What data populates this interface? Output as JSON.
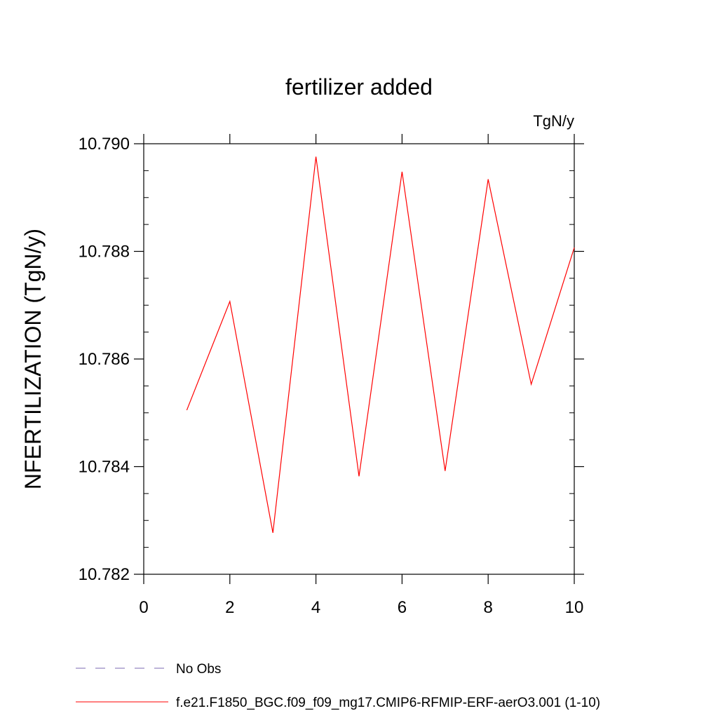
{
  "chart_data": {
    "type": "line",
    "title": "fertilizer added",
    "units_label": "TgN/y",
    "ylabel": "NFERTILIZATION  (TgN/y)",
    "xlabel": "",
    "xlim": [
      0,
      10
    ],
    "ylim": [
      10.782,
      10.79
    ],
    "xticks": [
      0,
      2,
      4,
      6,
      8,
      10
    ],
    "xtick_labels": [
      "0",
      "2",
      "4",
      "6",
      "8",
      "10"
    ],
    "yticks": [
      10.782,
      10.784,
      10.786,
      10.788,
      10.79
    ],
    "ytick_labels": [
      "10.782",
      "10.784",
      "10.786",
      "10.788",
      "10.790"
    ],
    "grid": false,
    "legend_position": "bottom",
    "series": [
      {
        "name": "f.e21.F1850_BGC.f09_f09_mg17.CMIP6-RFMIP-ERF-aerO3.001 (1-10)",
        "color": "#ff0000",
        "style": "solid",
        "x": [
          1,
          2,
          3,
          4,
          5,
          6,
          7,
          8,
          9,
          10
        ],
        "y": [
          10.78505,
          10.78707,
          10.78277,
          10.78976,
          10.78382,
          10.78948,
          10.78392,
          10.78934,
          10.78553,
          10.78807
        ]
      }
    ],
    "legend": [
      {
        "label": "No Obs",
        "color": "#7b68b0",
        "style": "dashed"
      },
      {
        "label": "f.e21.F1850_BGC.f09_f09_mg17.CMIP6-RFMIP-ERF-aerO3.001 (1-10)",
        "color": "#ff0000",
        "style": "solid"
      }
    ]
  }
}
